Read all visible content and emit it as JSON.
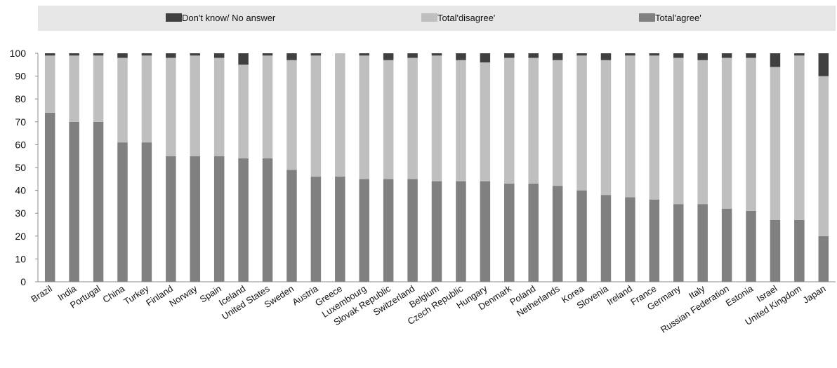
{
  "chart_data": {
    "type": "bar",
    "stacked": true,
    "title": "",
    "xlabel": "",
    "ylabel": "",
    "ylim": [
      0,
      100
    ],
    "yticks": [
      0,
      10,
      20,
      30,
      40,
      50,
      60,
      70,
      80,
      90,
      100
    ],
    "grid": false,
    "legend_position": "top",
    "categories": [
      "Brazil",
      "India",
      "Portugal",
      "China",
      "Turkey",
      "Finland",
      "Norway",
      "Spain",
      "Iceland",
      "United States",
      "Sweden",
      "Austria",
      "Greece",
      "Luxembourg",
      "Slovak Republic",
      "Switzerland",
      "Belgium",
      "Czech Republic",
      "Hungary",
      "Denmark",
      "Poland",
      "Netherlands",
      "Korea",
      "Slovenia",
      "Ireland",
      "France",
      "Germany",
      "Italy",
      "Russian Federation",
      "Estonia",
      "Israel",
      "United Kingdom",
      "Japan"
    ],
    "series": [
      {
        "name": "Total'agree'",
        "color": "#808080",
        "values": [
          74,
          70,
          70,
          61,
          61,
          55,
          55,
          55,
          54,
          54,
          49,
          46,
          46,
          45,
          45,
          45,
          44,
          44,
          44,
          43,
          43,
          42,
          40,
          38,
          37,
          36,
          34,
          34,
          32,
          31,
          27,
          27,
          20
        ]
      },
      {
        "name": "Total'disagree'",
        "color": "#bfbfbf",
        "values": [
          25,
          29,
          29,
          37,
          38,
          43,
          44,
          43,
          41,
          45,
          48,
          53,
          54,
          54,
          52,
          53,
          55,
          53,
          52,
          55,
          55,
          55,
          59,
          59,
          62,
          63,
          64,
          63,
          66,
          67,
          67,
          72,
          70
        ]
      },
      {
        "name": "Don't know/ No answer",
        "color": "#404040",
        "values": [
          1,
          1,
          1,
          2,
          1,
          2,
          1,
          2,
          5,
          1,
          3,
          1,
          0,
          1,
          3,
          2,
          1,
          3,
          4,
          2,
          2,
          3,
          1,
          3,
          1,
          1,
          2,
          3,
          2,
          2,
          6,
          1,
          10
        ]
      }
    ],
    "legend_order": [
      "Don't know/ No answer",
      "Total'disagree'",
      "Total'agree'"
    ]
  }
}
